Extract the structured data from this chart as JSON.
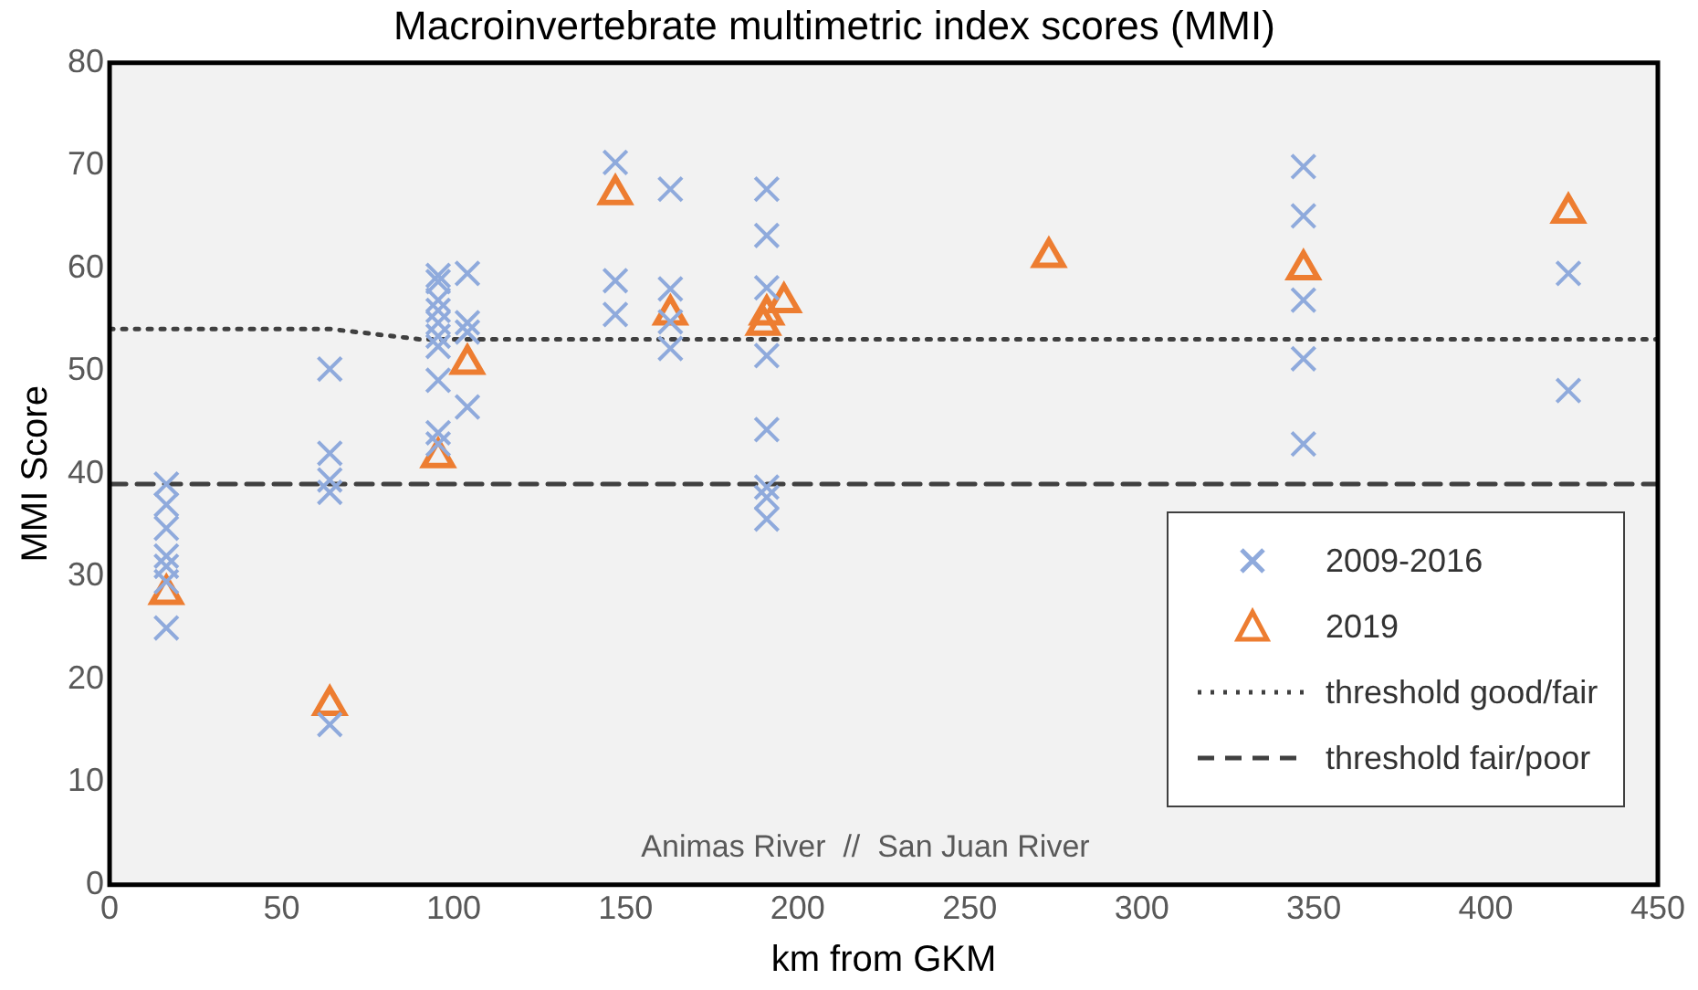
{
  "chart_data": {
    "type": "scatter",
    "title": "Macroinvertebrate multimetric index scores (MMI)",
    "xlabel": "km from GKM",
    "ylabel": "MMI Score",
    "xlim": [
      0,
      450
    ],
    "xticks": [
      0,
      50,
      100,
      150,
      200,
      250,
      300,
      350,
      400,
      450
    ],
    "ylim": [
      0,
      80
    ],
    "yticks": [
      0,
      10,
      20,
      30,
      40,
      50,
      60,
      70,
      80
    ],
    "grid": false,
    "legend": "bottom right",
    "annotations": [
      "Animas River  //  San Juan River"
    ],
    "series": [
      {
        "name": "2009-2016",
        "marker": "cross",
        "color": "#8faadc",
        "x": [
          16.5,
          16.5,
          16.5,
          16.5,
          16.5,
          16.5,
          16.5,
          64,
          64,
          64,
          64,
          64,
          95.5,
          95.5,
          95.5,
          95.5,
          95.5,
          95.5,
          95.5,
          95.5,
          95.5,
          95.5,
          104,
          104,
          104,
          104,
          147,
          147,
          147,
          163,
          163,
          163,
          163,
          191,
          191,
          191,
          191,
          191,
          191,
          191,
          191,
          347,
          347,
          347,
          347,
          347,
          424,
          424
        ],
        "values": [
          39,
          37,
          34.7,
          32,
          31,
          29.5,
          25,
          50.2,
          42,
          39.4,
          38.2,
          15.6,
          59.3,
          58.7,
          55.9,
          54.7,
          53.4,
          52.4,
          49.1,
          44,
          42.9,
          56.9,
          59.5,
          54.7,
          53.8,
          46.5,
          70.3,
          58.8,
          55.5,
          67.7,
          58,
          54.8,
          52.2,
          67.7,
          63.2,
          58.1,
          51.5,
          44.3,
          38.7,
          37.7,
          35.6,
          69.9,
          65.1,
          56.9,
          51.2,
          42.9,
          59.5,
          48.1
        ]
      },
      {
        "name": "2019",
        "marker": "triangle",
        "color": "#ed7d31",
        "x": [
          16.5,
          64,
          95.5,
          104,
          147,
          163,
          190,
          191,
          196,
          273,
          347,
          424
        ],
        "values": [
          28.3,
          17.5,
          41.6,
          50.7,
          67.2,
          55.5,
          54.5,
          55.5,
          56.7,
          61.1,
          59.9,
          65.4
        ]
      },
      {
        "name": "threshold good/fair",
        "type": "line",
        "marker": "none",
        "line_style": "dotted",
        "color": "#404040",
        "x": [
          0,
          64,
          90,
          450
        ],
        "values": [
          54.1,
          54.1,
          53.1,
          53.1
        ]
      },
      {
        "name": "threshold fair/poor",
        "type": "line",
        "marker": "none",
        "line_style": "dashed",
        "color": "#404040",
        "x": [
          0,
          450
        ],
        "values": [
          39,
          39
        ]
      }
    ]
  }
}
